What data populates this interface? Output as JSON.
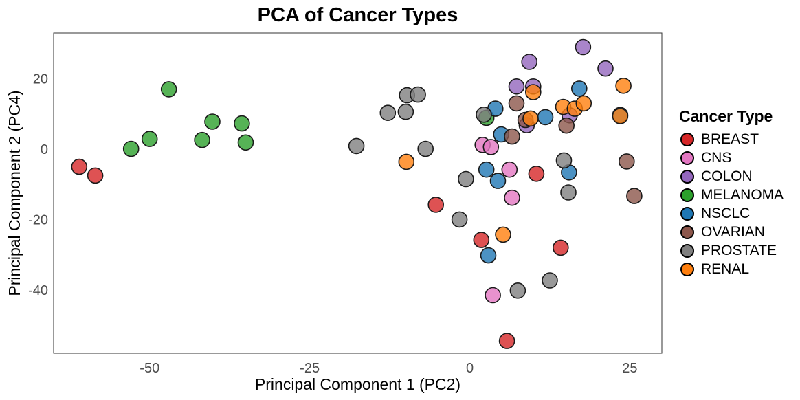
{
  "chart_data": {
    "type": "scatter",
    "title": "PCA of Cancer Types",
    "xlabel": "Principal Component 1 (PC2)",
    "ylabel": "Principal Component 2 (PC4)",
    "xlim": [
      -65,
      30
    ],
    "ylim": [
      -58,
      33
    ],
    "xticks": [
      -50,
      -25,
      0,
      25
    ],
    "yticks": [
      -40,
      -20,
      0,
      20
    ],
    "grid": false,
    "legend": {
      "title": "Cancer Type",
      "placement": "right"
    },
    "series": [
      {
        "name": "BREAST",
        "color": "#d62728",
        "points": [
          [
            -61.0,
            -5
          ],
          [
            -58.5,
            -7.5
          ],
          [
            -5.3,
            -15.8
          ],
          [
            1.8,
            -25.8
          ],
          [
            10.4,
            -7
          ],
          [
            14.2,
            -28
          ],
          [
            5.8,
            -54.5
          ]
        ]
      },
      {
        "name": "CNS",
        "color": "#e377c2",
        "points": [
          [
            2.0,
            1.2
          ],
          [
            3.3,
            0.6
          ],
          [
            6.2,
            -5.8
          ],
          [
            6.6,
            -13.8
          ],
          [
            3.6,
            -41.5
          ]
        ]
      },
      {
        "name": "COLON",
        "color": "#9467bd",
        "points": [
          [
            9.3,
            24.8
          ],
          [
            7.3,
            17.8
          ],
          [
            9.9,
            17.8
          ],
          [
            17.7,
            29
          ],
          [
            21.2,
            22.9
          ],
          [
            15.6,
            9.6
          ],
          [
            8.9,
            6.8
          ]
        ]
      },
      {
        "name": "MELANOMA",
        "color": "#2ca02c",
        "points": [
          [
            -47.0,
            17
          ],
          [
            -40.2,
            7.8
          ],
          [
            -35.6,
            7.3
          ],
          [
            -41.8,
            2.6
          ],
          [
            -50.0,
            2.9
          ],
          [
            -52.9,
            0.1
          ],
          [
            -35.0,
            1.9
          ],
          [
            2.6,
            8.9
          ]
        ]
      },
      {
        "name": "NSCLC",
        "color": "#1f77b4",
        "points": [
          [
            4.0,
            11.5
          ],
          [
            4.9,
            4.2
          ],
          [
            11.8,
            9.1
          ],
          [
            17.1,
            17.2
          ],
          [
            23.5,
            9.7
          ],
          [
            2.6,
            -5.8
          ],
          [
            4.4,
            -9
          ],
          [
            15.5,
            -6.6
          ],
          [
            2.9,
            -30.2
          ]
        ]
      },
      {
        "name": "OVARIAN",
        "color": "#8c564b",
        "points": [
          [
            7.3,
            13
          ],
          [
            6.6,
            3.6
          ],
          [
            8.7,
            8.3
          ],
          [
            15.1,
            6.7
          ],
          [
            24.5,
            -3.5
          ],
          [
            25.7,
            -13.3
          ]
        ]
      },
      {
        "name": "PROSTATE",
        "color": "#7f7f7f",
        "points": [
          [
            -9.8,
            15.3
          ],
          [
            -8.1,
            15.5
          ],
          [
            -12.8,
            10.3
          ],
          [
            -10.0,
            10.6
          ],
          [
            -17.7,
            0.9
          ],
          [
            -6.9,
            0.1
          ],
          [
            -0.6,
            -8.5
          ],
          [
            -1.6,
            -20
          ],
          [
            14.7,
            -3.2
          ],
          [
            15.4,
            -12.3
          ],
          [
            2.2,
            9.8
          ],
          [
            7.5,
            -40.2
          ],
          [
            12.5,
            -37.3
          ]
        ]
      },
      {
        "name": "RENAL",
        "color": "#ff7f0e",
        "points": [
          [
            -9.9,
            -3.6
          ],
          [
            9.9,
            16.2
          ],
          [
            24.0,
            18
          ],
          [
            14.6,
            12
          ],
          [
            16.4,
            11.5
          ],
          [
            17.8,
            13
          ],
          [
            9.5,
            8.7
          ],
          [
            23.5,
            9.4
          ],
          [
            5.2,
            -24.3
          ]
        ]
      }
    ]
  }
}
